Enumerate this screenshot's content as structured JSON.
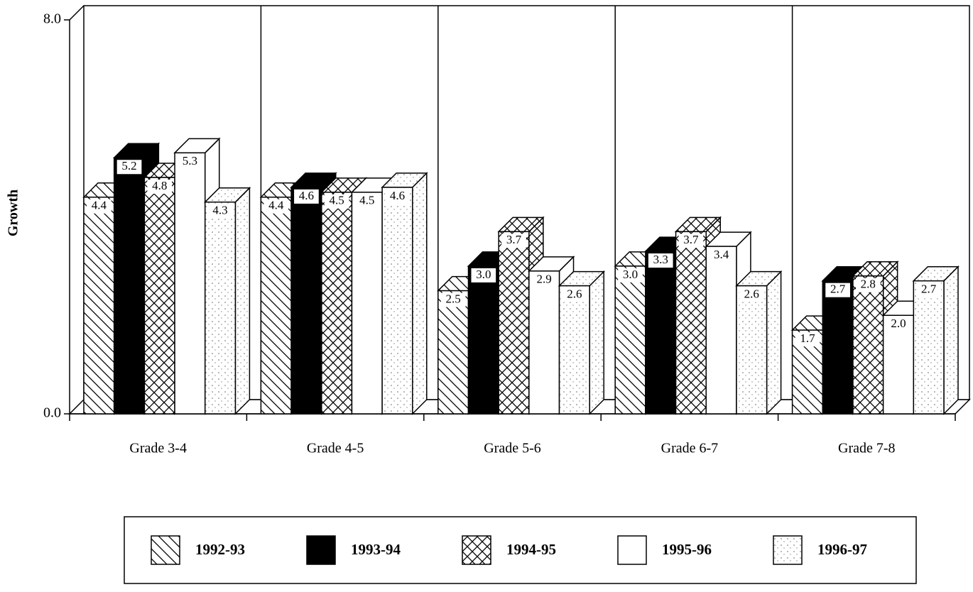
{
  "chart_data": {
    "type": "bar3d",
    "ylabel": "Growth",
    "categories": [
      "Grade 3-4",
      "Grade 4-5",
      "Grade 5-6",
      "Grade 6-7",
      "Grade 7-8"
    ],
    "series": [
      {
        "name": "1992-93",
        "color": "#ffffff",
        "pattern": "diagonal",
        "values": [
          4.4,
          4.4,
          2.5,
          3.0,
          1.7
        ],
        "value_labels": [
          "4.4",
          "4.4",
          "2.5",
          "3.0",
          "1.7"
        ]
      },
      {
        "name": "1993-94",
        "color": "#000000",
        "pattern": "solid",
        "values": [
          5.2,
          4.6,
          3.0,
          3.3,
          2.7
        ],
        "value_labels": [
          "5.2",
          "4.6",
          "3.0",
          "3.3",
          "2.7"
        ]
      },
      {
        "name": "1994-95",
        "color": "#ffffff",
        "pattern": "crosshatch",
        "values": [
          4.8,
          4.5,
          3.7,
          3.7,
          2.8
        ],
        "value_labels": [
          "4.8",
          "4.5",
          "3.7",
          "3.7",
          "2.8"
        ]
      },
      {
        "name": "1995-96",
        "color": "#ffffff",
        "pattern": "solid",
        "values": [
          5.3,
          4.5,
          2.9,
          3.4,
          2.0
        ],
        "value_labels": [
          "5.3",
          "4.5",
          "2.9",
          "3.4",
          "2.0"
        ]
      },
      {
        "name": "1996-97",
        "color": "#ffffff",
        "pattern": "dots",
        "values": [
          4.3,
          4.6,
          2.6,
          2.6,
          2.7
        ],
        "value_labels": [
          "4.3",
          "4.6",
          "2.6",
          "2.6",
          "2.7"
        ]
      }
    ],
    "ylim": [
      0,
      8
    ],
    "yticks": [
      {
        "value": 0,
        "label": "0.0"
      },
      {
        "value": 8,
        "label": "8.0"
      }
    ],
    "legend": "bottom"
  }
}
